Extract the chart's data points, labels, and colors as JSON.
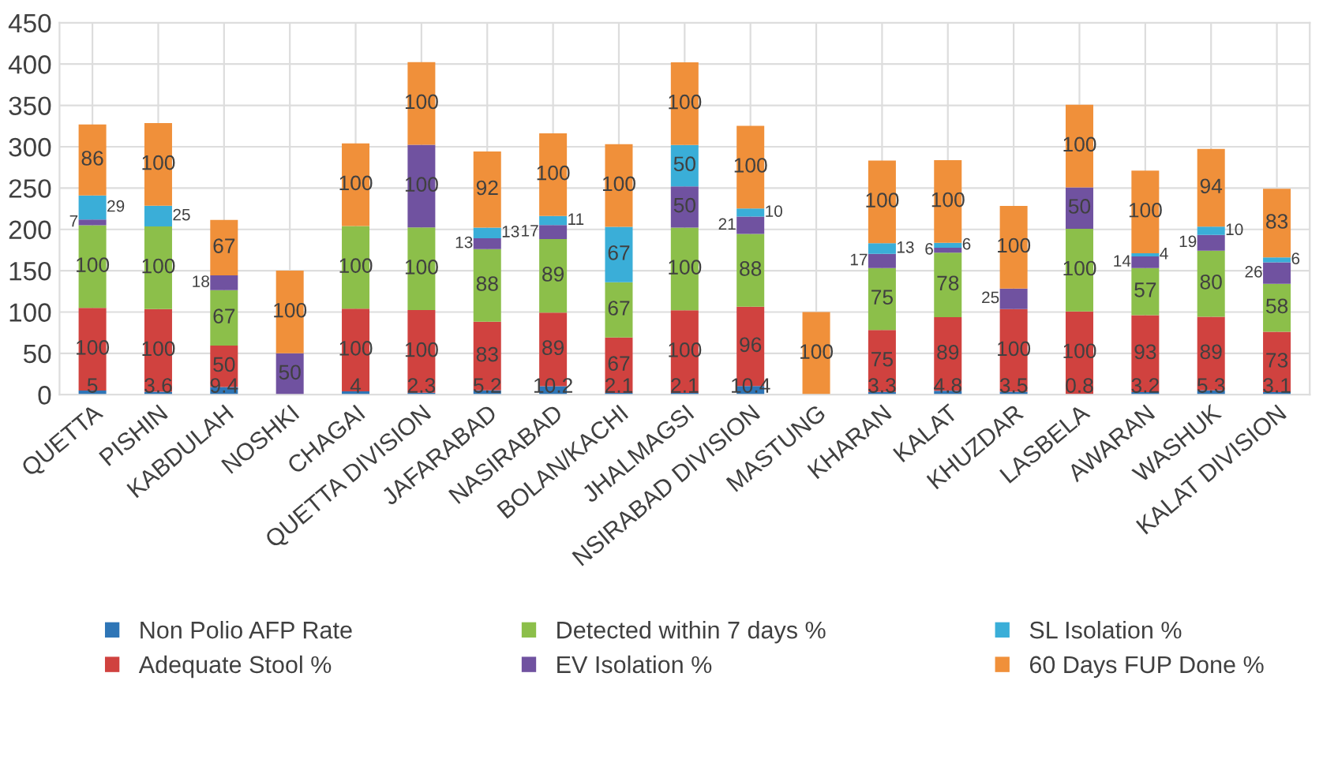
{
  "chart_data": {
    "type": "bar",
    "stacked": true,
    "grid": true,
    "legend": "bottom",
    "categories": [
      "QUETTA",
      "PISHIN",
      "KABDULAH",
      "NOSHKI",
      "CHAGAI",
      "QUETTA DIVISION",
      "JAFARABAD",
      "NASIRABAD",
      "BOLAN/KACHI",
      "JHALMAGSI",
      "NSIRABAD DIVISION",
      "MASTUNG",
      "KHARAN",
      "KALAT",
      "KHUZDAR",
      "LASBELA",
      "AWARAN",
      "WASHUK",
      "KALAT DIVISION"
    ],
    "ylim": [
      0,
      450
    ],
    "yticks": [
      0,
      50,
      100,
      150,
      200,
      250,
      300,
      350,
      400,
      450
    ],
    "series": [
      {
        "name": "Non Polio AFP Rate",
        "color": "#2e75b6",
        "values": [
          5,
          3.6,
          9.4,
          0,
          4,
          2.3,
          5.2,
          10.2,
          2.1,
          2.1,
          10.4,
          0,
          3.3,
          4.8,
          3.5,
          0.8,
          3.2,
          5.3,
          3.1
        ],
        "value_labels": [
          "5",
          "3.6",
          "9.4",
          null,
          "4",
          "2.3",
          "5.2",
          "10.2",
          "2.1",
          "2.1",
          "10.4",
          null,
          "3.3",
          "4.8",
          "3.5",
          "0.8",
          "3.2",
          "5.3",
          "3.1"
        ]
      },
      {
        "name": "Adequate Stool %",
        "color": "#d0423f",
        "values": [
          100,
          100,
          50,
          0,
          100,
          100,
          83,
          89,
          67,
          100,
          96,
          0,
          75,
          89,
          100,
          100,
          93,
          89,
          73
        ],
        "value_labels": [
          "100",
          "100",
          "50",
          null,
          "100",
          "100",
          "83",
          "89",
          "67",
          "100",
          "96",
          null,
          "75",
          "89",
          "100",
          "100",
          "93",
          "89",
          "73"
        ]
      },
      {
        "name": "Detected within 7 days %",
        "color": "#8cbf4a",
        "values": [
          100,
          100,
          67,
          0,
          100,
          100,
          88,
          89,
          67,
          100,
          88,
          0,
          75,
          78,
          0,
          100,
          57,
          80,
          58
        ],
        "value_labels": [
          "100",
          "100",
          "67",
          null,
          "100",
          "100",
          "88",
          "89",
          "67",
          "100",
          "88",
          null,
          "75",
          "78",
          null,
          "100",
          "57",
          "80",
          "58"
        ]
      },
      {
        "name": "EV Isolation %",
        "color": "#7052a0",
        "values": [
          7,
          0,
          18,
          50,
          0,
          100,
          13,
          17,
          0,
          50,
          21,
          0,
          17,
          6,
          25,
          50,
          14,
          19,
          26
        ],
        "value_labels": [
          "7",
          null,
          "18",
          "50",
          null,
          "100",
          "13",
          "17",
          null,
          "50",
          "21",
          null,
          "17",
          "6",
          "25",
          "50",
          "14",
          "19",
          "26"
        ]
      },
      {
        "name": "SL Isolation %",
        "color": "#3aaed8",
        "values": [
          29,
          25,
          0,
          0,
          0,
          0,
          13,
          11,
          67,
          50,
          10,
          0,
          13,
          6,
          0,
          0,
          4,
          10,
          6
        ],
        "value_labels": [
          "29",
          "25",
          null,
          null,
          null,
          null,
          "13",
          "11",
          "67",
          "50",
          "10",
          null,
          "13",
          "6",
          null,
          null,
          "4",
          "10",
          "6"
        ]
      },
      {
        "name": "60 Days FUP Done %",
        "color": "#f0903a",
        "values": [
          86,
          100,
          67,
          100,
          100,
          100,
          92,
          100,
          100,
          100,
          100,
          100,
          100,
          100,
          100,
          100,
          100,
          94,
          83
        ],
        "value_labels": [
          "86",
          "100",
          "67",
          "100",
          "100",
          "100",
          "92",
          "100",
          "100",
          "100",
          "100",
          "100",
          "100",
          "100",
          "100",
          "100",
          "100",
          "94",
          "83"
        ]
      }
    ]
  }
}
